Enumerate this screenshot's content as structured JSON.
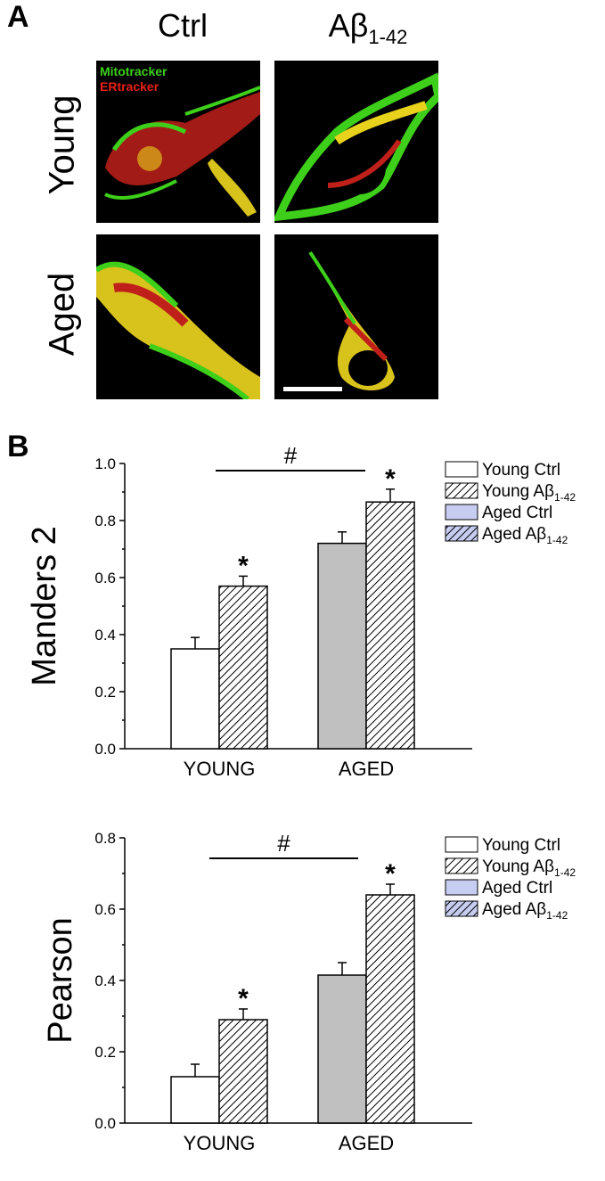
{
  "panel_a": {
    "letter": "A",
    "columns": [
      {
        "label": "Ctrl",
        "sub": ""
      },
      {
        "label": "Aβ",
        "sub": "1-42"
      }
    ],
    "rows": [
      "Young",
      "Aged"
    ],
    "legend": {
      "green": "Mitotracker",
      "red": "ERtracker"
    },
    "colors": {
      "green": "#3ecf1a",
      "red": "#e8201a",
      "yellow": "#e8d21c"
    }
  },
  "panel_b": {
    "letter": "B"
  },
  "legend_entries": [
    {
      "label": "Young Ctrl",
      "sub": "",
      "fill": "#ffffff",
      "hatch": false
    },
    {
      "label": "Young Aβ",
      "sub": "1-42",
      "fill": "#ffffff",
      "hatch": true
    },
    {
      "label": "Aged Ctrl",
      "sub": "",
      "fill": "#c7cdf0",
      "hatch": false
    },
    {
      "label": "Aged Aβ",
      "sub": "1-42",
      "fill": "#c7cdf0",
      "hatch": true
    }
  ],
  "chart_data": [
    {
      "type": "bar",
      "ylabel": "Manders 2",
      "ylim": [
        0.0,
        1.0
      ],
      "yticks": [
        "0.0",
        "0.2",
        "0.4",
        "0.6",
        "0.8",
        "1.0"
      ],
      "categories": [
        "YOUNG",
        "AGED"
      ],
      "series": [
        {
          "name": "Young Ctrl",
          "values": [
            0.35,
            null
          ],
          "errors": [
            0.04,
            null
          ],
          "fill": "#ffffff",
          "hatch": false
        },
        {
          "name": "Young Aβ1-42",
          "values": [
            0.57,
            null
          ],
          "errors": [
            0.035,
            null
          ],
          "fill": "#ffffff",
          "hatch": true
        },
        {
          "name": "Aged Ctrl",
          "values": [
            null,
            0.72
          ],
          "errors": [
            null,
            0.04
          ],
          "fill": "#c0c0c0",
          "hatch": false
        },
        {
          "name": "Aged Aβ1-42",
          "values": [
            null,
            0.865
          ],
          "errors": [
            null,
            0.045
          ],
          "fill": "#ffffff",
          "hatch": true
        }
      ],
      "significance": {
        "star": "*",
        "hash": "#",
        "starred_series": [
          "Young Aβ1-42",
          "Aged Aβ1-42"
        ]
      }
    },
    {
      "type": "bar",
      "ylabel": "Pearson",
      "ylim": [
        0.0,
        0.8
      ],
      "yticks": [
        "0.0",
        "0.2",
        "0.4",
        "0.6",
        "0.8"
      ],
      "categories": [
        "YOUNG",
        "AGED"
      ],
      "series": [
        {
          "name": "Young Ctrl",
          "values": [
            0.13,
            null
          ],
          "errors": [
            0.035,
            null
          ],
          "fill": "#ffffff",
          "hatch": false
        },
        {
          "name": "Young Aβ1-42",
          "values": [
            0.29,
            null
          ],
          "errors": [
            0.03,
            null
          ],
          "fill": "#ffffff",
          "hatch": true
        },
        {
          "name": "Aged Ctrl",
          "values": [
            null,
            0.415
          ],
          "errors": [
            null,
            0.035
          ],
          "fill": "#c0c0c0",
          "hatch": false
        },
        {
          "name": "Aged Aβ1-42",
          "values": [
            null,
            0.64
          ],
          "errors": [
            null,
            0.03
          ],
          "fill": "#ffffff",
          "hatch": true
        }
      ],
      "significance": {
        "star": "*",
        "hash": "#",
        "starred_series": [
          "Young Aβ1-42",
          "Aged Aβ1-42"
        ]
      }
    }
  ]
}
